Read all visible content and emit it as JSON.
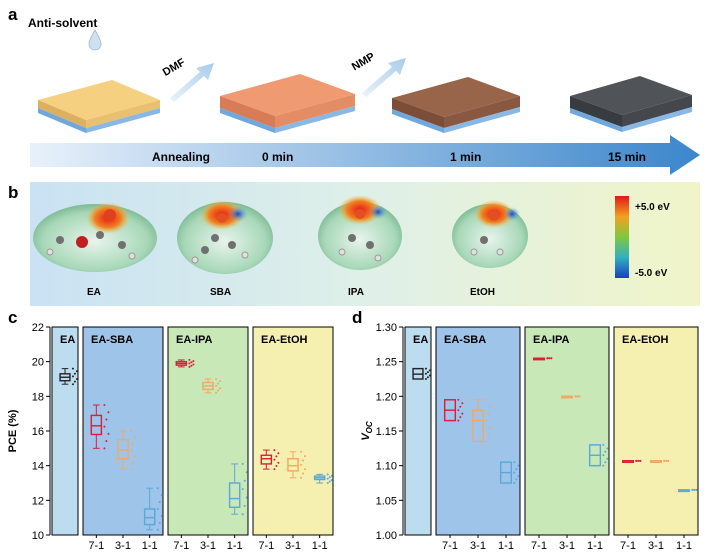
{
  "panel_a": {
    "label": "a",
    "antisolvent": "Anti-solvent",
    "dmf": "DMF",
    "nmp": "NMP",
    "timeline": [
      "Annealing",
      "0 min",
      "1 min",
      "15 min"
    ]
  },
  "panel_b": {
    "label": "b",
    "molecules": [
      "EA",
      "SBA",
      "IPA",
      "EtOH"
    ],
    "scale_top": "+5.0 eV",
    "scale_bottom": "-5.0 eV",
    "colors": {
      "high": "#e02020",
      "mid": "#70c040",
      "low": "#2060d0"
    }
  },
  "chart_data": [
    {
      "type": "box",
      "panel": "c",
      "ylabel": "PCE (%)",
      "ylim": [
        10,
        22
      ],
      "yticks": [
        10,
        12,
        14,
        16,
        18,
        20,
        22
      ],
      "groups": [
        {
          "name": "EA",
          "bg": "#bcdcf0",
          "boxes": [
            {
              "cat": "",
              "q1": 18.9,
              "median": 19.1,
              "q3": 19.3,
              "lo": 18.7,
              "hi": 19.6,
              "color": "#222222"
            }
          ]
        },
        {
          "name": "EA-SBA",
          "bg": "#9ec4ea",
          "boxes": [
            {
              "cat": "7-1",
              "q1": 15.8,
              "median": 16.3,
              "q3": 16.9,
              "lo": 15.0,
              "hi": 17.5,
              "color": "#d81e3a"
            },
            {
              "cat": "3-1",
              "q1": 14.4,
              "median": 14.9,
              "q3": 15.5,
              "lo": 13.8,
              "hi": 16.0,
              "color": "#f2a860"
            },
            {
              "cat": "1-1",
              "q1": 10.6,
              "median": 11.0,
              "q3": 11.5,
              "lo": 10.3,
              "hi": 12.7,
              "color": "#5aa8d8"
            }
          ]
        },
        {
          "name": "EA-IPA",
          "bg": "#c8e8b8",
          "boxes": [
            {
              "cat": "7-1",
              "q1": 19.8,
              "median": 19.9,
              "q3": 20.0,
              "lo": 19.7,
              "hi": 20.1,
              "color": "#d81e3a"
            },
            {
              "cat": "3-1",
              "q1": 18.4,
              "median": 18.6,
              "q3": 18.8,
              "lo": 18.2,
              "hi": 19.0,
              "color": "#f2a860"
            },
            {
              "cat": "1-1",
              "q1": 11.6,
              "median": 12.1,
              "q3": 13.0,
              "lo": 11.2,
              "hi": 14.1,
              "color": "#5aa8d8"
            }
          ]
        },
        {
          "name": "EA-EtOH",
          "bg": "#f6f0b0",
          "boxes": [
            {
              "cat": "7-1",
              "q1": 14.1,
              "median": 14.4,
              "q3": 14.6,
              "lo": 13.8,
              "hi": 14.9,
              "color": "#d81e3a"
            },
            {
              "cat": "3-1",
              "q1": 13.7,
              "median": 14.0,
              "q3": 14.4,
              "lo": 13.3,
              "hi": 14.8,
              "color": "#f2a860"
            },
            {
              "cat": "1-1",
              "q1": 13.2,
              "median": 13.3,
              "q3": 13.4,
              "lo": 13.0,
              "hi": 13.5,
              "color": "#5aa8d8"
            }
          ]
        }
      ]
    },
    {
      "type": "box",
      "panel": "d",
      "ylabel": "V",
      "ylabel_sub": "OC",
      "ylim": [
        1.0,
        1.3
      ],
      "yticks": [
        1.0,
        1.05,
        1.1,
        1.15,
        1.2,
        1.25,
        1.3
      ],
      "groups": [
        {
          "name": "EA",
          "bg": "#bcdcf0",
          "boxes": [
            {
              "cat": "",
              "q1": 1.225,
              "median": 1.232,
              "q3": 1.24,
              "lo": 1.225,
              "hi": 1.24,
              "color": "#222222"
            }
          ]
        },
        {
          "name": "EA-SBA",
          "bg": "#9ec4ea",
          "boxes": [
            {
              "cat": "7-1",
              "q1": 1.165,
              "median": 1.18,
              "q3": 1.195,
              "lo": 1.165,
              "hi": 1.195,
              "color": "#d81e3a"
            },
            {
              "cat": "3-1",
              "q1": 1.135,
              "median": 1.165,
              "q3": 1.18,
              "lo": 1.135,
              "hi": 1.195,
              "color": "#f2a860"
            },
            {
              "cat": "1-1",
              "q1": 1.075,
              "median": 1.09,
              "q3": 1.105,
              "lo": 1.075,
              "hi": 1.105,
              "color": "#5aa8d8"
            }
          ]
        },
        {
          "name": "EA-IPA",
          "bg": "#c8e8b8",
          "boxes": [
            {
              "cat": "7-1",
              "q1": 1.255,
              "median": 1.255,
              "q3": 1.255,
              "lo": 1.255,
              "hi": 1.255,
              "color": "#d81e3a"
            },
            {
              "cat": "3-1",
              "q1": 1.2,
              "median": 1.2,
              "q3": 1.2,
              "lo": 1.2,
              "hi": 1.2,
              "color": "#f2a860"
            },
            {
              "cat": "1-1",
              "q1": 1.1,
              "median": 1.115,
              "q3": 1.13,
              "lo": 1.1,
              "hi": 1.13,
              "color": "#5aa8d8"
            }
          ]
        },
        {
          "name": "EA-EtOH",
          "bg": "#f6f0b0",
          "boxes": [
            {
              "cat": "7-1",
              "q1": 1.107,
              "median": 1.107,
              "q3": 1.107,
              "lo": 1.107,
              "hi": 1.107,
              "color": "#d81e3a"
            },
            {
              "cat": "3-1",
              "q1": 1.107,
              "median": 1.107,
              "q3": 1.107,
              "lo": 1.107,
              "hi": 1.107,
              "color": "#f2a860"
            },
            {
              "cat": "1-1",
              "q1": 1.065,
              "median": 1.065,
              "q3": 1.065,
              "lo": 1.065,
              "hi": 1.065,
              "color": "#5aa8d8"
            }
          ]
        }
      ]
    }
  ]
}
